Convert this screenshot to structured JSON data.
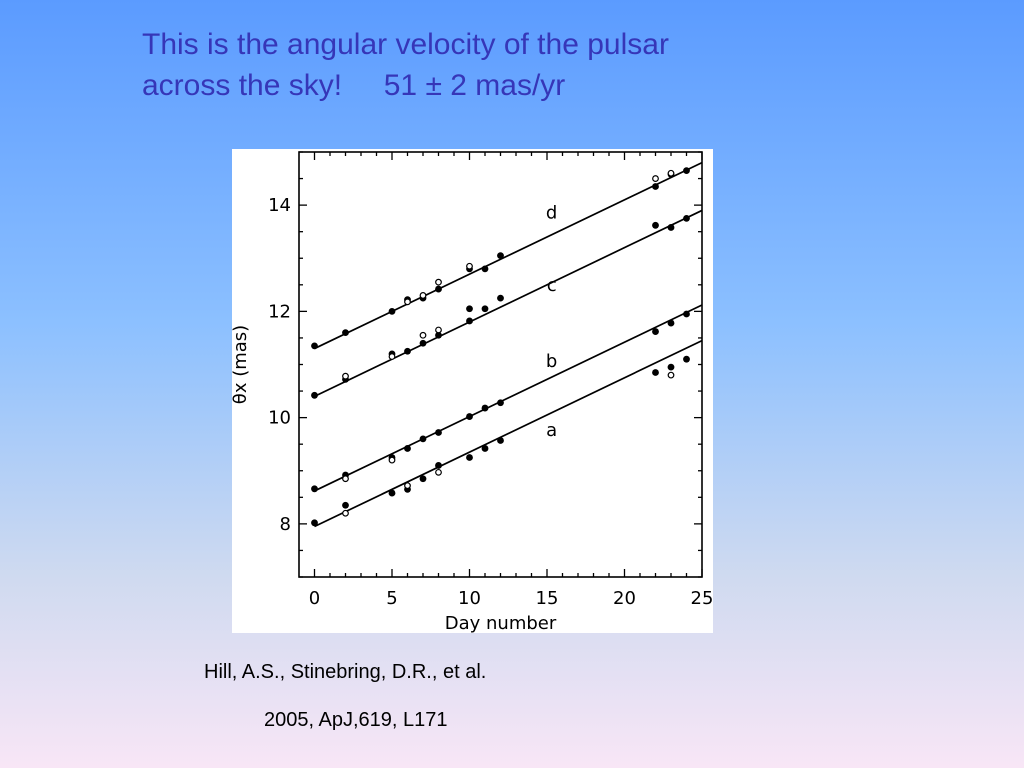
{
  "slide": {
    "title_line1": "This is the angular velocity of the pulsar",
    "title_line2": "across the sky!     51 ± 2 mas/yr",
    "citation_line1": "Hill, A.S., Stinebring, D.R., et al.",
    "citation_line2": "2005, ApJ,619, L171",
    "title_color": "#3636b8"
  },
  "chart_data": {
    "type": "scatter",
    "title": "",
    "xlabel": "Day number",
    "ylabel": "θx (mas)",
    "xlim": [
      -1,
      25
    ],
    "ylim": [
      7,
      15
    ],
    "xticks": [
      0,
      5,
      10,
      15,
      20,
      25
    ],
    "yticks": [
      8,
      10,
      12,
      14
    ],
    "grid": false,
    "legend": "none",
    "series": [
      {
        "name": "a",
        "fit": {
          "intercept": 7.95,
          "slope": 0.14
        },
        "points_filled": [
          [
            0,
            8.02
          ],
          [
            2,
            8.35
          ],
          [
            5,
            8.58
          ],
          [
            6,
            8.65
          ],
          [
            7,
            8.85
          ],
          [
            8,
            9.1
          ],
          [
            10,
            9.25
          ],
          [
            11,
            9.42
          ],
          [
            12,
            9.57
          ],
          [
            22,
            10.85
          ],
          [
            23,
            10.95
          ],
          [
            24,
            11.1
          ]
        ],
        "points_open": [
          [
            2,
            8.2
          ],
          [
            6,
            8.72
          ],
          [
            8,
            8.97
          ],
          [
            23,
            10.8
          ]
        ]
      },
      {
        "name": "b",
        "fit": {
          "intercept": 8.62,
          "slope": 0.14
        },
        "points_filled": [
          [
            0,
            8.66
          ],
          [
            2,
            8.92
          ],
          [
            5,
            9.25
          ],
          [
            6,
            9.42
          ],
          [
            7,
            9.6
          ],
          [
            8,
            9.72
          ],
          [
            10,
            10.02
          ],
          [
            11,
            10.18
          ],
          [
            12,
            10.28
          ],
          [
            22,
            11.62
          ],
          [
            23,
            11.78
          ],
          [
            24,
            11.95
          ]
        ],
        "points_open": [
          [
            2,
            8.85
          ],
          [
            5,
            9.2
          ]
        ]
      },
      {
        "name": "c",
        "fit": {
          "intercept": 10.4,
          "slope": 0.14
        },
        "points_filled": [
          [
            0,
            10.42
          ],
          [
            2,
            10.72
          ],
          [
            5,
            11.2
          ],
          [
            6,
            11.25
          ],
          [
            7,
            11.4
          ],
          [
            8,
            11.55
          ],
          [
            10,
            11.82
          ],
          [
            10,
            12.05
          ],
          [
            11,
            12.05
          ],
          [
            12,
            12.25
          ],
          [
            22,
            13.62
          ],
          [
            23,
            13.58
          ],
          [
            24,
            13.75
          ]
        ],
        "points_open": [
          [
            2,
            10.78
          ],
          [
            5,
            11.15
          ],
          [
            7,
            11.55
          ],
          [
            8,
            11.65
          ]
        ]
      },
      {
        "name": "d",
        "fit": {
          "intercept": 11.3,
          "slope": 0.14
        },
        "points_filled": [
          [
            0,
            11.35
          ],
          [
            2,
            11.6
          ],
          [
            5,
            12.0
          ],
          [
            6,
            12.22
          ],
          [
            7,
            12.25
          ],
          [
            8,
            12.42
          ],
          [
            10,
            12.8
          ],
          [
            11,
            12.8
          ],
          [
            12,
            13.05
          ],
          [
            22,
            14.35
          ],
          [
            23,
            14.58
          ],
          [
            24,
            14.65
          ]
        ],
        "points_open": [
          [
            6,
            12.18
          ],
          [
            7,
            12.3
          ],
          [
            8,
            12.55
          ],
          [
            10,
            12.85
          ],
          [
            22,
            14.5
          ],
          [
            23,
            14.6
          ]
        ]
      }
    ],
    "line_labels": [
      {
        "text": "a",
        "x": 15.3,
        "y": 9.65
      },
      {
        "text": "b",
        "x": 15.3,
        "y": 10.95
      },
      {
        "text": "c",
        "x": 15.3,
        "y": 12.38
      },
      {
        "text": "d",
        "x": 15.3,
        "y": 13.75
      }
    ]
  }
}
